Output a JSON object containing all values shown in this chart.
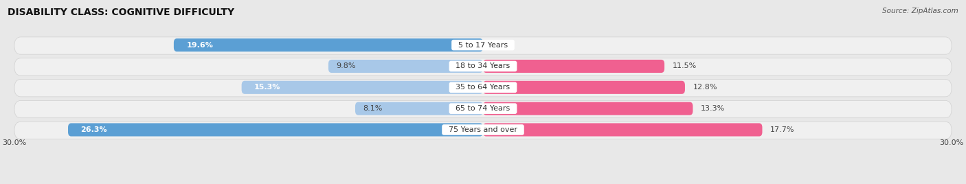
{
  "title": "DISABILITY CLASS: COGNITIVE DIFFICULTY",
  "source": "Source: ZipAtlas.com",
  "categories": [
    "5 to 17 Years",
    "18 to 34 Years",
    "35 to 64 Years",
    "65 to 74 Years",
    "75 Years and over"
  ],
  "male_values": [
    19.6,
    9.8,
    15.3,
    8.1,
    26.3
  ],
  "female_values": [
    0.0,
    11.5,
    12.8,
    13.3,
    17.7
  ],
  "male_color_light": "#a8c8e8",
  "male_color_dark": "#5b9fd4",
  "female_color_light": "#f4a0b8",
  "female_color_dark": "#f06090",
  "max_val": 30.0,
  "bg_color": "#e8e8e8",
  "row_bg": "#f2f2f2",
  "title_fontsize": 10,
  "label_fontsize": 8,
  "value_fontsize": 8,
  "tick_fontsize": 8,
  "bar_height": 0.62
}
